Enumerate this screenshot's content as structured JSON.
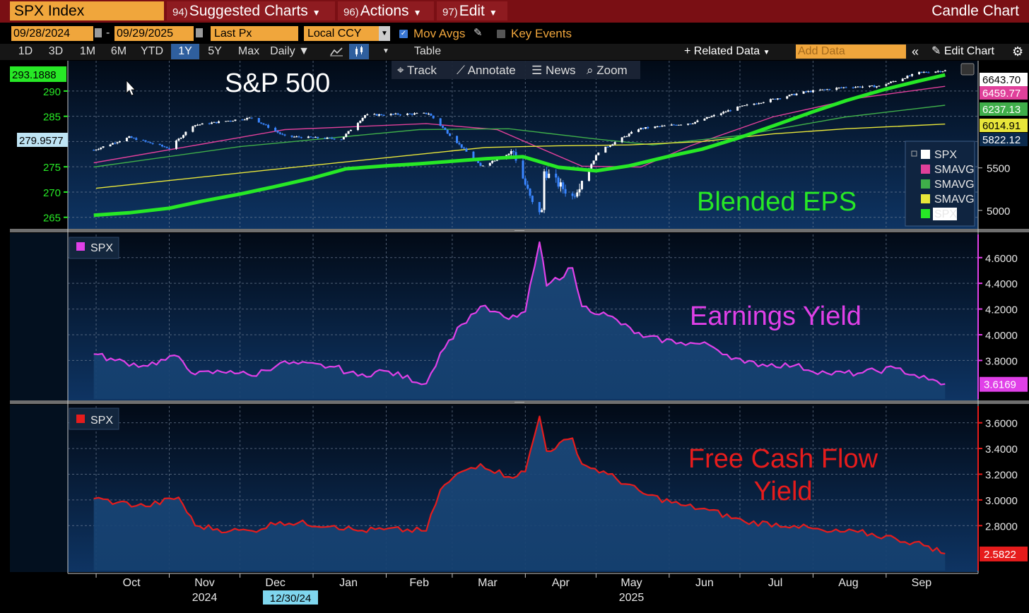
{
  "toolbar": {
    "ticker": "SPX Index",
    "suggested_num": "94)",
    "suggested_label": "Suggested Charts",
    "actions_num": "96)",
    "actions_label": "Actions",
    "edit_num": "97)",
    "edit_label": "Edit",
    "chart_type": "Candle Chart",
    "start_date": "09/28/2024",
    "date_sep": "-",
    "end_date": "09/29/2025",
    "field": "Last Px",
    "currency": "Local CCY",
    "mov_avgs": "Mov Avgs",
    "key_events": "Key Events",
    "ranges": [
      "1D",
      "3D",
      "1M",
      "6M",
      "YTD",
      "1Y",
      "5Y",
      "Max"
    ],
    "selected_range": "1Y",
    "frequency": "Daily",
    "table": "Table",
    "related_data": "Related Data",
    "add_data_placeholder": "Add Data",
    "edit_chart": "Edit Chart"
  },
  "tools": {
    "track": "Track",
    "annotate": "Annotate",
    "news": "News",
    "zoom": "Zoom"
  },
  "colors": {
    "price": "#ffffff",
    "smavg50": "#e0409a",
    "smavg100": "#3fae4a",
    "smavg200": "#e8e63a",
    "eps": "#27e826",
    "earnings_yield": "#e040e8",
    "fcf_yield": "#e61c1c",
    "panel_bg": "#0b2a4c"
  },
  "chart_data": [
    {
      "type": "line",
      "panel": "top",
      "title": "S&P 500",
      "annotation": "Blended EPS",
      "x_months": [
        "Oct",
        "Nov",
        "Dec",
        "Jan",
        "Feb",
        "Mar",
        "Apr",
        "May",
        "Jun",
        "Jul",
        "Aug",
        "Sep"
      ],
      "x_years": [
        {
          "month": "Nov",
          "year": "2024"
        },
        {
          "month": "May",
          "year": "2025"
        }
      ],
      "cursor_date": "12/30/24",
      "left_axis": {
        "label": "Blended EPS",
        "ylim": [
          263,
          296
        ],
        "ticks": [
          265,
          270,
          275,
          280,
          285,
          290
        ]
      },
      "right_axis": {
        "label": "SPX",
        "ylim": [
          4800,
          6760
        ],
        "ticks": [
          5000,
          5500
        ]
      },
      "series": [
        {
          "name": "SPX",
          "axis": "right",
          "dates": [
            "2024-09-30",
            "2024-10-15",
            "2024-11-01",
            "2024-11-11",
            "2024-12-06",
            "2024-12-20",
            "2025-01-13",
            "2025-01-23",
            "2025-02-19",
            "2025-03-13",
            "2025-03-27",
            "2025-04-04",
            "2025-04-08",
            "2025-04-09",
            "2025-04-21",
            "2025-05-02",
            "2025-05-19",
            "2025-06-11",
            "2025-06-30",
            "2025-07-28",
            "2025-08-15",
            "2025-08-29",
            "2025-09-15",
            "2025-09-26"
          ],
          "values": [
            5710,
            5860,
            5730,
            6000,
            6090,
            5870,
            5840,
            6120,
            6140,
            5520,
            5690,
            5070,
            4980,
            5460,
            5160,
            5690,
            5960,
            6030,
            6210,
            6390,
            6450,
            6460,
            6620,
            6643.7
          ]
        },
        {
          "name": "SMAVG (50)",
          "axis": "right",
          "dates": [
            "2024-09-30",
            "2024-11-15",
            "2024-12-20",
            "2025-02-18",
            "2025-03-20",
            "2025-04-25",
            "2025-05-20",
            "2025-06-10",
            "2025-07-15",
            "2025-08-20",
            "2025-09-26"
          ],
          "values": [
            5560,
            5780,
            5950,
            6020,
            5950,
            5520,
            5510,
            5760,
            6100,
            6320,
            6459.77
          ]
        },
        {
          "name": "SMAVG (100)",
          "axis": "right",
          "dates": [
            "2024-09-30",
            "2024-12-01",
            "2025-02-15",
            "2025-03-25",
            "2025-05-01",
            "2025-05-25",
            "2025-07-01",
            "2025-08-15",
            "2025-09-26"
          ],
          "values": [
            5510,
            5750,
            5950,
            5960,
            5840,
            5770,
            5880,
            6100,
            6237.13
          ]
        },
        {
          "name": "SMAVG (200)",
          "axis": "right",
          "dates": [
            "2024-10-01",
            "2024-12-01",
            "2025-02-01",
            "2025-03-15",
            "2025-04-15",
            "2025-05-15",
            "2025-06-15",
            "2025-07-15",
            "2025-08-15",
            "2025-09-26"
          ],
          "values": [
            5260,
            5440,
            5620,
            5740,
            5760,
            5770,
            5810,
            5900,
            5960,
            6014.91
          ]
        },
        {
          "name": "Blended EPS (SPX)",
          "axis": "left",
          "dates": [
            "2024-09-30",
            "2024-10-15",
            "2024-11-01",
            "2024-11-15",
            "2024-12-01",
            "2024-12-15",
            "2025-01-01",
            "2025-01-15",
            "2025-02-01",
            "2025-02-15",
            "2025-03-01",
            "2025-03-15",
            "2025-03-31",
            "2025-04-15",
            "2025-05-01",
            "2025-05-15",
            "2025-06-01",
            "2025-06-15",
            "2025-07-01",
            "2025-07-15",
            "2025-08-01",
            "2025-08-15",
            "2025-09-01",
            "2025-09-15",
            "2025-09-26"
          ],
          "values": [
            265.4,
            265.9,
            266.8,
            268.2,
            269.6,
            271.0,
            272.8,
            274.6,
            275.2,
            275.6,
            276.1,
            276.6,
            277.0,
            274.9,
            274.2,
            275.2,
            277.1,
            278.5,
            280.8,
            283.1,
            285.9,
            288.1,
            290.4,
            292.0,
            293.1888
          ]
        }
      ],
      "value_labels_right": [
        "6643.70",
        "6459.77",
        "6237.13",
        "6014.91",
        "5822.12"
      ],
      "value_labels_left": [
        "293.1888",
        "279.9577"
      ],
      "legend": [
        "SPX",
        "SMAVG",
        "SMAVG",
        "SMAVG",
        "SPX"
      ],
      "legend_position": "right"
    },
    {
      "type": "area",
      "panel": "middle",
      "legend": "SPX",
      "annotation": "Earnings Yield",
      "ylim": [
        3.5,
        4.78
      ],
      "ticks": [
        3.8,
        4.0,
        4.2,
        4.4,
        4.6
      ],
      "tick_labels": [
        "3.8000",
        "4.0000",
        "4.2000",
        "4.4000",
        "4.6000"
      ],
      "last_value": "3.6169",
      "dates": [
        "2024-09-30",
        "2024-10-09",
        "2024-10-21",
        "2024-11-05",
        "2024-11-12",
        "2024-11-27",
        "2024-12-06",
        "2024-12-18",
        "2025-01-10",
        "2025-01-20",
        "2025-01-31",
        "2025-02-18",
        "2025-02-24",
        "2025-03-05",
        "2025-03-13",
        "2025-03-25",
        "2025-04-01",
        "2025-04-07",
        "2025-04-10",
        "2025-04-21",
        "2025-04-25",
        "2025-05-06",
        "2025-05-21",
        "2025-06-06",
        "2025-06-18",
        "2025-07-03",
        "2025-07-24",
        "2025-08-07",
        "2025-08-20",
        "2025-09-05",
        "2025-09-19",
        "2025-09-26"
      ],
      "values": [
        3.85,
        3.8,
        3.76,
        3.83,
        3.69,
        3.72,
        3.68,
        3.78,
        3.75,
        3.68,
        3.72,
        3.62,
        3.86,
        4.08,
        4.22,
        4.12,
        4.18,
        4.72,
        4.38,
        4.52,
        4.22,
        4.15,
        3.98,
        3.94,
        3.92,
        3.78,
        3.76,
        3.7,
        3.7,
        3.74,
        3.65,
        3.6169
      ]
    },
    {
      "type": "area",
      "panel": "bottom",
      "legend": "SPX",
      "annotation": "Free Cash Flow Yield",
      "ylim": [
        2.45,
        3.73
      ],
      "ticks": [
        2.8,
        3.0,
        3.2,
        3.4,
        3.6
      ],
      "tick_labels": [
        "2.8000",
        "3.0000",
        "3.2000",
        "3.4000",
        "3.6000"
      ],
      "last_value": "2.5822",
      "dates": [
        "2024-09-30",
        "2024-10-10",
        "2024-10-22",
        "2024-11-05",
        "2024-11-12",
        "2024-11-27",
        "2024-12-06",
        "2024-12-18",
        "2025-01-10",
        "2025-01-20",
        "2025-01-31",
        "2025-02-18",
        "2025-02-24",
        "2025-03-05",
        "2025-03-13",
        "2025-03-25",
        "2025-04-01",
        "2025-04-07",
        "2025-04-10",
        "2025-04-21",
        "2025-04-25",
        "2025-05-06",
        "2025-05-21",
        "2025-06-06",
        "2025-06-18",
        "2025-07-03",
        "2025-07-24",
        "2025-08-07",
        "2025-08-20",
        "2025-09-05",
        "2025-09-19",
        "2025-09-26"
      ],
      "values": [
        3.01,
        2.98,
        2.95,
        3.02,
        2.8,
        2.76,
        2.76,
        2.83,
        2.8,
        2.76,
        2.77,
        2.76,
        3.08,
        3.22,
        3.28,
        3.18,
        3.22,
        3.65,
        3.38,
        3.48,
        3.28,
        3.2,
        3.05,
        2.96,
        2.92,
        2.83,
        2.8,
        2.75,
        2.75,
        2.7,
        2.64,
        2.5822
      ]
    }
  ]
}
